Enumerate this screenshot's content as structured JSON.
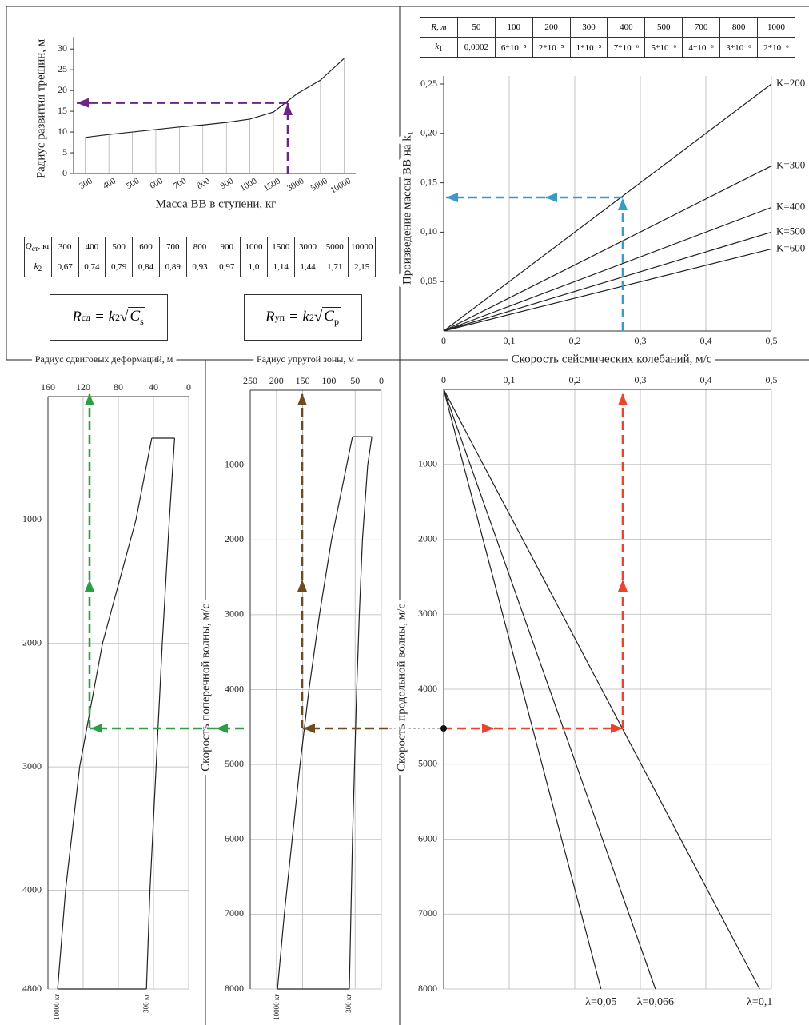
{
  "chart_data": [
    {
      "type": "line",
      "ylabel": "Радиус развития трещин, м",
      "xlabel": "Масса ВВ в ступени, кг",
      "categories": [
        "300",
        "400",
        "500",
        "600",
        "700",
        "800",
        "900",
        "1000",
        "1500",
        "3000",
        "5000",
        "10000"
      ],
      "values": [
        8.7,
        9.4,
        10,
        10.6,
        11.2,
        11.7,
        12.3,
        13.1,
        14.8,
        19.2,
        22.5,
        27.7
      ],
      "color": "#222222",
      "ylim": [
        0,
        31
      ],
      "yticks": [
        0,
        5,
        10,
        15,
        20,
        25,
        30
      ],
      "grid": false
    },
    {
      "type": "line",
      "ylabel": "Произведение массы ВВ на k₁",
      "xlabel": "Скорость сейсмических колебаний, м/с",
      "xlim": [
        0,
        0.5
      ],
      "ylim": [
        0,
        0.25
      ],
      "xticks": [
        0,
        {
          "value": 0.1,
          "label": "0,1"
        },
        {
          "value": 0.2,
          "label": "0,2"
        },
        {
          "value": 0.3,
          "label": "0,3"
        },
        {
          "value": 0.4,
          "label": "0,4"
        },
        {
          "value": 0.5,
          "label": "0,5"
        }
      ],
      "yticks": [
        {
          "value": 0.05,
          "label": "0,05"
        },
        {
          "value": 0.1,
          "label": "0,10"
        },
        {
          "value": 0.15,
          "label": "0,15"
        },
        {
          "value": 0.2,
          "label": "0,20"
        },
        {
          "value": 0.25,
          "label": "0,25"
        }
      ],
      "grid": "x",
      "series": [
        {
          "name": "K=200",
          "color": "#222222",
          "x": [
            0,
            0.5
          ],
          "values": [
            0,
            0.25
          ]
        },
        {
          "name": "K=300",
          "color": "#222222",
          "x": [
            0,
            0.5
          ],
          "values": [
            0,
            0.167
          ]
        },
        {
          "name": "K=400",
          "color": "#222222",
          "x": [
            0,
            0.5
          ],
          "values": [
            0,
            0.125
          ]
        },
        {
          "name": "K=500",
          "color": "#222222",
          "x": [
            0,
            0.5
          ],
          "values": [
            0,
            0.1
          ]
        },
        {
          "name": "K=600",
          "color": "#222222",
          "x": [
            0,
            0.5
          ],
          "values": [
            0,
            0.083
          ]
        }
      ]
    },
    {
      "type": "line",
      "ylabel": "Скорость продольной волны, м/с",
      "xlim": [
        0,
        0.5
      ],
      "ylim": [
        0,
        8000
      ],
      "y_inverted": true,
      "x_axis": "top",
      "xticks": [
        0,
        {
          "value": 0.1,
          "label": "0,1"
        },
        {
          "value": 0.2,
          "label": "0,2"
        },
        {
          "value": 0.3,
          "label": "0,3"
        },
        {
          "value": 0.4,
          "label": "0,4"
        },
        {
          "value": 0.5,
          "label": "0,5"
        }
      ],
      "yticks": [
        1000,
        2000,
        3000,
        4000,
        5000,
        6000,
        7000,
        8000
      ],
      "grid": "both",
      "series": [
        {
          "name": "λ=0,05",
          "color": "#222222",
          "x": [
            0,
            0.24
          ],
          "values": [
            0,
            8000
          ]
        },
        {
          "name": "λ=0,066",
          "color": "#222222",
          "x": [
            0,
            0.323
          ],
          "values": [
            0,
            8000
          ]
        },
        {
          "name": "λ=0,1",
          "color": "#222222",
          "x": [
            0,
            0.482
          ],
          "values": [
            0,
            8000
          ]
        }
      ]
    },
    {
      "type": "line",
      "title": "Радиус упругой зоны, м",
      "ylabel": "Скорость поперечной волны, м/с",
      "xlim": [
        250,
        0
      ],
      "ylim": [
        0,
        8000
      ],
      "y_inverted": true,
      "x_axis": "top",
      "xticks": [
        250,
        200,
        150,
        100,
        50,
        0
      ],
      "yticks": [
        1000,
        2000,
        3000,
        4000,
        5000,
        6000,
        7000,
        8000
      ],
      "grid": "both",
      "series": [
        {
          "name": "10000 кг",
          "color": "#222222",
          "x": [
            55,
            66,
            95,
            118,
            138,
            155,
            170,
            185,
            198
          ],
          "values": [
            620,
            1000,
            2000,
            3000,
            4000,
            5000,
            6000,
            7000,
            8000
          ]
        },
        {
          "name": "300 кг",
          "color": "#222222",
          "x": [
            18,
            26,
            36,
            42,
            47,
            51,
            55,
            58,
            61
          ],
          "values": [
            620,
            1000,
            2000,
            3000,
            4000,
            5000,
            6000,
            7000,
            8000
          ]
        }
      ]
    },
    {
      "type": "line",
      "title": "Радиус сдвиговых деформаций, м",
      "xlim": [
        160,
        0
      ],
      "ylim": [
        0,
        4800
      ],
      "y_inverted": true,
      "x_axis": "top",
      "xticks": [
        160,
        120,
        80,
        40,
        0
      ],
      "yticks": [
        1000,
        2000,
        3000,
        4000,
        4800
      ],
      "grid": "both",
      "series": [
        {
          "name": "10000 кг",
          "color": "#222222",
          "x": [
            42,
            60,
            98,
            124,
            140,
            149
          ],
          "values": [
            337,
            1000,
            2000,
            3000,
            4000,
            4800
          ]
        },
        {
          "name": "300 кг",
          "color": "#222222",
          "x": [
            16,
            22,
            30,
            37,
            44,
            48
          ],
          "values": [
            337,
            1000,
            2000,
            3000,
            4000,
            4800
          ]
        }
      ]
    }
  ],
  "tables": [
    {
      "rows": [
        {
          "label": "R, м",
          "cells": [
            "50",
            "100",
            "200",
            "300",
            "400",
            "500",
            "700",
            "800",
            "1000"
          ]
        },
        {
          "label": "k",
          "sub": "1",
          "cells": [
            "0,0002",
            "6*10⁻⁵",
            "2*10⁻⁵",
            "1*10⁻⁵",
            "7*10⁻⁶",
            "5*10⁻⁶",
            "4*10⁻⁶",
            "3*10⁻⁶",
            "2*10⁻⁶"
          ]
        }
      ]
    },
    {
      "rows": [
        {
          "label": "Q",
          "sub": "ст",
          "suffix": ", кг",
          "cells": [
            "300",
            "400",
            "500",
            "600",
            "700",
            "800",
            "900",
            "1000",
            "1500",
            "3000",
            "5000",
            "10000"
          ]
        },
        {
          "label": "k",
          "sub": "2",
          "cells": [
            "0,67",
            "0,74",
            "0,79",
            "0,84",
            "0,89",
            "0,93",
            "0,97",
            "1,0",
            "1,14",
            "1,44",
            "1,71",
            "2,15"
          ]
        }
      ]
    }
  ],
  "formulas": [
    {
      "parts": [
        "R",
        "сд",
        " = k",
        "2",
        "C",
        "s"
      ]
    },
    {
      "parts": [
        "R",
        "уп",
        " = k",
        "2",
        "C",
        "p"
      ]
    }
  ]
}
